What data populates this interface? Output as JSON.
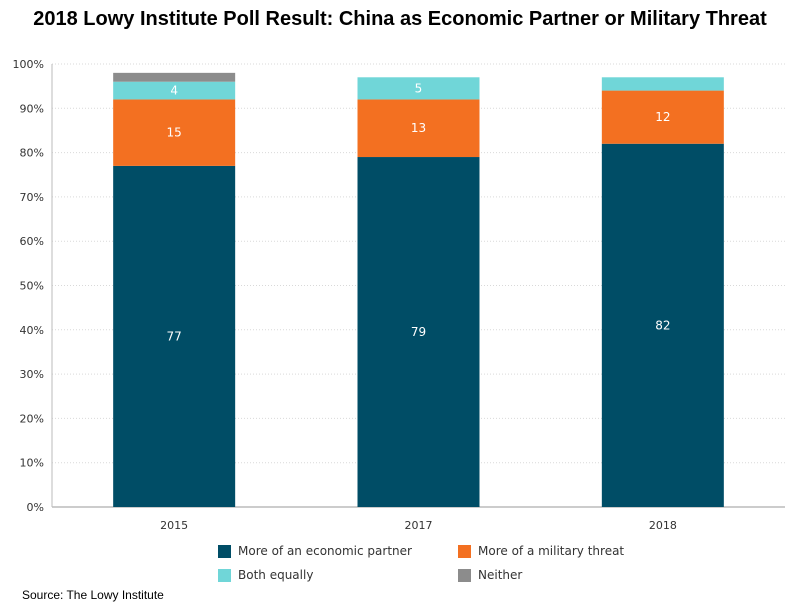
{
  "chart_data": {
    "type": "bar",
    "stacked": true,
    "title": "2018 Lowy Institute Poll Result: China as Economic Partner or Military Threat",
    "source": "Source: The Lowy Institute",
    "categories": [
      "2015",
      "2017",
      "2018"
    ],
    "ylim": [
      0,
      100
    ],
    "yticks": [
      "0%",
      "10%",
      "20%",
      "30%",
      "40%",
      "50%",
      "60%",
      "70%",
      "80%",
      "90%",
      "100%"
    ],
    "grid": true,
    "legend_position": "bottom",
    "series": [
      {
        "name": "More of an economic partner",
        "color": "#004d66",
        "label_color": "#ffffff",
        "values": [
          77,
          79,
          82
        ],
        "labels": [
          "77",
          "79",
          "82"
        ]
      },
      {
        "name": "More of a military threat",
        "color": "#f37021",
        "label_color": "#ffffff",
        "values": [
          15,
          13,
          12
        ],
        "labels": [
          "15",
          "13",
          "12"
        ]
      },
      {
        "name": "Both equally",
        "color": "#70d6d8",
        "label_color": "#ffffff",
        "values": [
          4,
          5,
          3
        ],
        "labels": [
          "4",
          "5",
          ""
        ]
      },
      {
        "name": "Neither",
        "color": "#8c8c8c",
        "label_color": "#ffffff",
        "values": [
          2,
          0,
          0
        ],
        "labels": [
          "",
          "",
          ""
        ]
      }
    ]
  }
}
